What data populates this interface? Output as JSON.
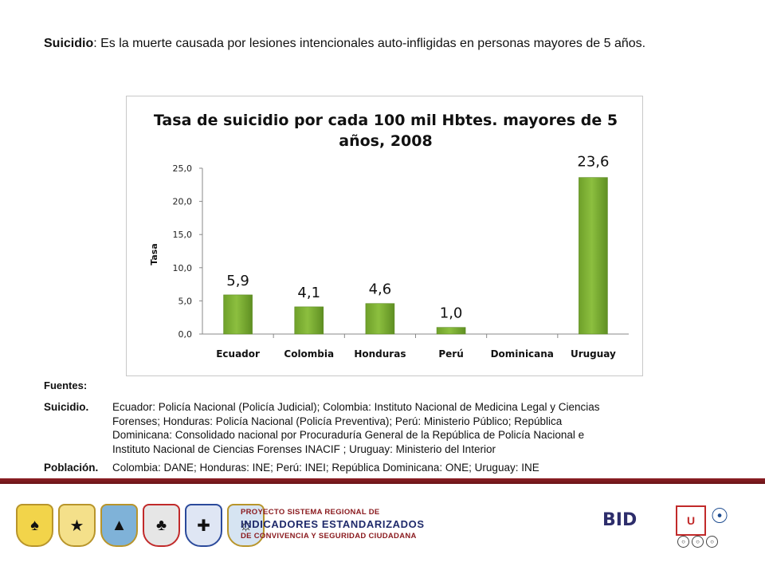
{
  "definition": {
    "term": "Suicidio",
    "text": ": Es la muerte causada por lesiones intencionales auto-infligidas en personas mayores de 5 años."
  },
  "chart_data": {
    "type": "bar",
    "title_line1": "Tasa de suicidio por cada 100 mil Hbtes. mayores de 5",
    "title_line2": "años, 2008",
    "ylabel": "Tasa",
    "xlabel": "",
    "ylim": [
      0,
      25
    ],
    "yticks": [
      "0,0",
      "5,0",
      "10,0",
      "15,0",
      "20,0",
      "25,0"
    ],
    "categories": [
      "Ecuador",
      "Colombia",
      "Honduras",
      "Perú",
      "Dominicana",
      "Uruguay"
    ],
    "values": [
      5.9,
      4.1,
      4.6,
      1.0,
      null,
      23.6
    ],
    "data_labels": [
      "5,9",
      "4,1",
      "4,6",
      "1,0",
      "",
      "23,6"
    ],
    "bar_color": "#8cbf3f",
    "grid": false,
    "legend": "none"
  },
  "sources": {
    "heading": "Fuentes:",
    "suicidio_label": "Suicidio.",
    "suicidio_lines": [
      "Ecuador: Policía Nacional (Policía Judicial); Colombia: Instituto Nacional de Medicina Legal y Ciencias",
      "Forenses; Honduras: Policía Nacional (Policía Preventiva); Perú: Ministerio Público; República",
      "Dominicana: Consolidado nacional por Procuraduría General de la República de Policía Nacional e",
      "Instituto Nacional de Ciencias Forenses INACIF ; Uruguay: Ministerio del Interior"
    ],
    "poblacion_label": "Población.",
    "poblacion_text": "Colombia: DANE; Honduras: INE; Perú: INEI; República Dominicana: ONE; Uruguay: INE"
  },
  "footer": {
    "project_line1": "PROYECTO SISTEMA REGIONAL DE",
    "project_line2": "INDICADORES ESTANDARIZADOS",
    "project_line3": "DE CONVIVENCIA Y SEGURIDAD CIUDADANA",
    "bid_text": "BID",
    "accent_color": "#8c1f24"
  }
}
